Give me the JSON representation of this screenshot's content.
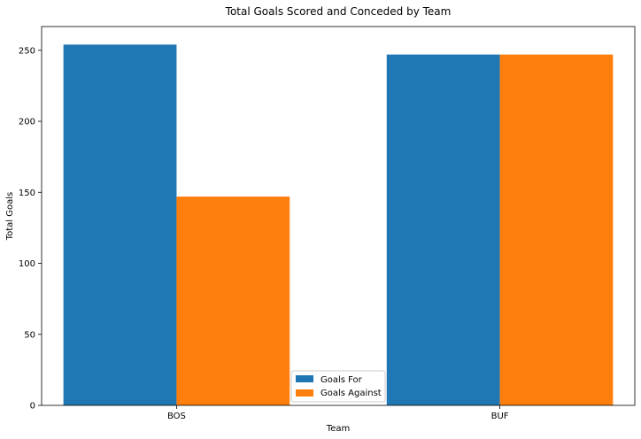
{
  "chart_data": {
    "type": "bar",
    "title": "Total Goals Scored and Conceded by Team",
    "xlabel": "Team",
    "ylabel": "Total Goals",
    "categories": [
      "BOS",
      "BUF"
    ],
    "series": [
      {
        "name": "Goals For",
        "values": [
          254,
          247
        ],
        "color": "#1f77b4"
      },
      {
        "name": "Goals Against",
        "values": [
          147,
          247
        ],
        "color": "#ff7f0e"
      }
    ],
    "ylim": [
      0,
      266.7
    ],
    "yticks": [
      0,
      50,
      100,
      150,
      200,
      250
    ],
    "grid": false,
    "legend_position": "bottom-center"
  }
}
